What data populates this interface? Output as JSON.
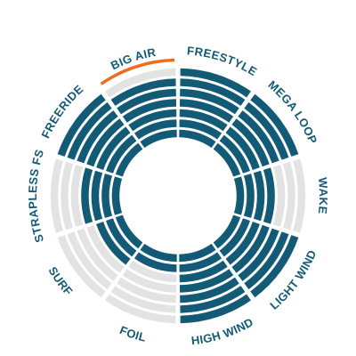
{
  "chart_data": {
    "type": "radial-bar",
    "rings_total": 7,
    "colors": {
      "filled": "#125a75",
      "empty": "#e3e3e3",
      "highlight": "#f26b1d",
      "label": "#125a75"
    },
    "categories": [
      "FREESTYLE",
      "MEGA LOOP",
      "WAKE",
      "LIGHT WIND",
      "HIGH WIND",
      "FOIL",
      "SURF",
      "STRAPLESS FS",
      "FREERIDE",
      "BIG AIR"
    ],
    "values": [
      7,
      7,
      4,
      7,
      7,
      2,
      3,
      4,
      7,
      6
    ],
    "highlight_category": "BIG AIR"
  }
}
